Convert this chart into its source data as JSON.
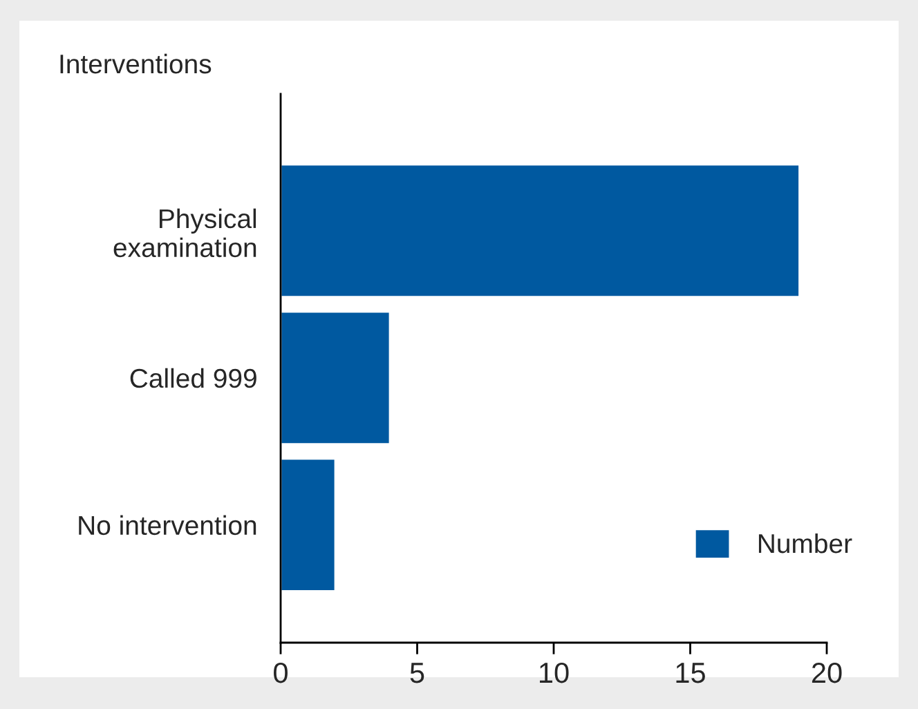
{
  "chart_data": {
    "type": "bar",
    "orientation": "horizontal",
    "ylabel": "Interventions",
    "categories": [
      "Physical\nexamination",
      "Called 999",
      "No intervention"
    ],
    "series": [
      {
        "name": "Number",
        "color": "#0059a0",
        "values": [
          19,
          4,
          2
        ]
      }
    ],
    "xlim": [
      0,
      20
    ],
    "xticks": [
      0,
      5,
      10,
      15,
      20
    ],
    "grid": false,
    "legend": "bottom right"
  }
}
